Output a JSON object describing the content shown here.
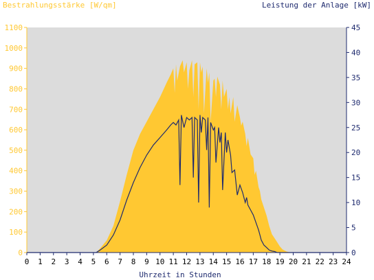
{
  "chart_data": {
    "type": "area",
    "left_axis_title": "Bestrahlungsstärke [W/qm]",
    "right_axis_title": "Leistung der Anlage [kW]",
    "xlabel": "Uhrzeit in Stunden",
    "xlim": [
      0,
      24
    ],
    "ylim_left": [
      0,
      1100
    ],
    "ylim_right": [
      0,
      45
    ],
    "x_ticks": [
      "0",
      "1",
      "2",
      "3",
      "4",
      "5",
      "6",
      "7",
      "8",
      "9",
      "10",
      "11",
      "12",
      "13",
      "14",
      "15",
      "16",
      "17",
      "18",
      "19",
      "20",
      "21",
      "22",
      "23",
      "24"
    ],
    "y_ticks_left": [
      "0",
      "100",
      "200",
      "300",
      "400",
      "500",
      "600",
      "700",
      "800",
      "900",
      "1000",
      "1100"
    ],
    "y_ticks_right": [
      "0",
      "5",
      "10",
      "15",
      "20",
      "25",
      "30",
      "35",
      "40",
      "45"
    ],
    "grid": false,
    "colors": {
      "irradiance": "#ffc832",
      "power": "#1e2a6e",
      "plot_bg": "#dcdcdc",
      "left_axis_text": "#ffc832",
      "right_axis_text": "#1e2a6e"
    },
    "series": [
      {
        "name": "Bestrahlungsstärke [W/qm]",
        "axis": "left",
        "x": [
          0,
          5.2,
          5.5,
          6.0,
          6.5,
          7.0,
          7.5,
          8.0,
          8.5,
          9.0,
          9.5,
          10.0,
          10.5,
          10.8,
          11.0,
          11.1,
          11.2,
          11.3,
          11.5,
          11.7,
          11.8,
          12.0,
          12.1,
          12.2,
          12.4,
          12.5,
          12.6,
          12.8,
          12.9,
          13.0,
          13.1,
          13.2,
          13.3,
          13.5,
          13.6,
          13.7,
          13.8,
          14.0,
          14.1,
          14.2,
          14.3,
          14.5,
          14.6,
          14.7,
          14.8,
          15.0,
          15.1,
          15.2,
          15.3,
          15.5,
          15.6,
          15.8,
          16.0,
          16.1,
          16.2,
          16.4,
          16.5,
          16.6,
          16.8,
          17.0,
          17.1,
          17.2,
          17.4,
          17.5,
          17.6,
          17.8,
          18.0,
          18.2,
          18.4,
          18.6,
          18.8,
          19.0,
          19.2,
          19.5,
          19.8,
          20.0,
          20.2,
          24
        ],
        "y": [
          0,
          0,
          20,
          60,
          130,
          250,
          380,
          500,
          580,
          640,
          700,
          760,
          830,
          870,
          900,
          780,
          920,
          840,
          910,
          940,
          880,
          930,
          800,
          890,
          940,
          760,
          920,
          930,
          700,
          930,
          880,
          910,
          680,
          900,
          830,
          880,
          640,
          840,
          850,
          760,
          860,
          820,
          700,
          840,
          760,
          800,
          700,
          760,
          680,
          760,
          640,
          720,
          660,
          620,
          640,
          580,
          520,
          560,
          480,
          460,
          380,
          400,
          320,
          300,
          260,
          220,
          180,
          130,
          90,
          70,
          50,
          30,
          15,
          5,
          0,
          0,
          0,
          0
        ]
      },
      {
        "name": "Leistung der Anlage [kW]",
        "axis": "right",
        "x": [
          0,
          5.2,
          5.5,
          6.0,
          6.5,
          7.0,
          7.5,
          8.0,
          8.5,
          9.0,
          9.5,
          10.0,
          10.5,
          10.8,
          11.0,
          11.2,
          11.4,
          11.5,
          11.6,
          11.8,
          12.0,
          12.2,
          12.4,
          12.5,
          12.6,
          12.8,
          12.9,
          13.0,
          13.1,
          13.2,
          13.4,
          13.5,
          13.6,
          13.7,
          13.8,
          14.0,
          14.1,
          14.2,
          14.4,
          14.5,
          14.6,
          14.7,
          14.9,
          15.0,
          15.1,
          15.3,
          15.4,
          15.6,
          15.8,
          16.0,
          16.2,
          16.4,
          16.5,
          16.6,
          16.8,
          17.0,
          17.2,
          17.4,
          17.5,
          17.6,
          17.8,
          18.0,
          18.2,
          18.4,
          18.6,
          18.8,
          19.0,
          19.2,
          19.5,
          19.8,
          20.0,
          24
        ],
        "y": [
          0,
          0,
          0.5,
          1.5,
          3.5,
          6.5,
          10.5,
          14,
          17,
          19.5,
          21.5,
          23,
          24.5,
          25.5,
          26,
          25.5,
          26.5,
          13.5,
          27.5,
          25,
          27,
          26.5,
          27,
          15,
          27,
          26.5,
          10,
          27.5,
          24,
          27,
          26.5,
          20.5,
          27,
          9,
          26,
          24.5,
          25,
          18,
          25,
          22,
          24,
          12.5,
          24,
          20,
          22.5,
          19.5,
          16,
          16.5,
          11.5,
          13.5,
          12,
          10,
          11,
          9.5,
          8.5,
          7.5,
          6,
          4.5,
          3.5,
          2.5,
          1.5,
          1,
          0.5,
          0.3,
          0.2,
          0,
          0,
          0,
          0,
          0,
          0,
          0
        ]
      }
    ]
  }
}
